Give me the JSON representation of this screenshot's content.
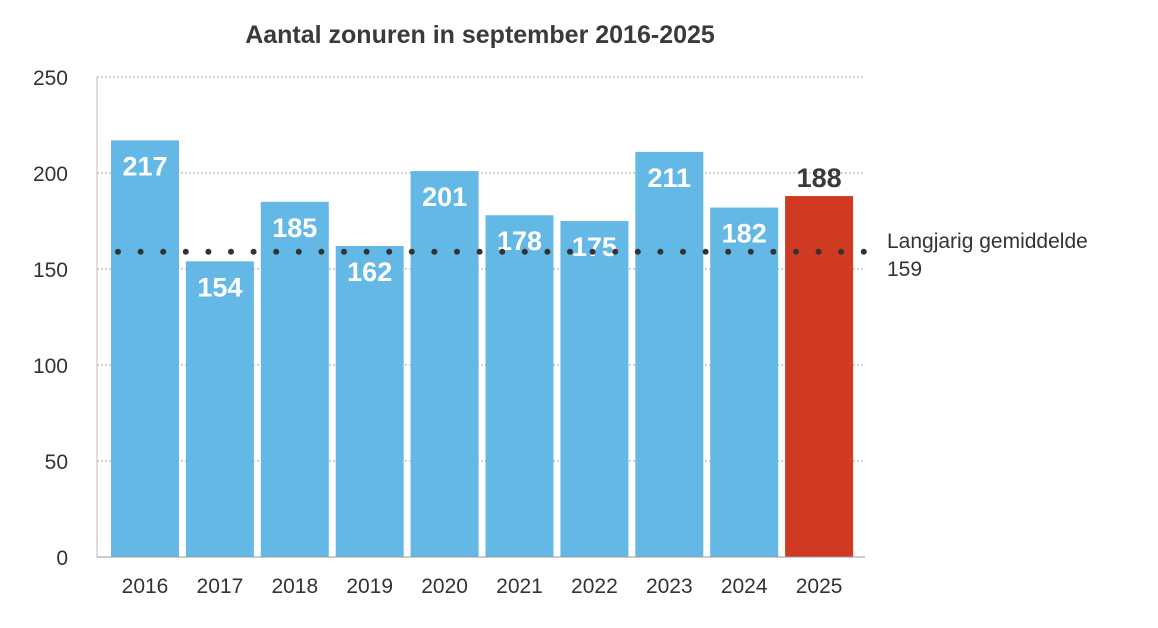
{
  "chart_data": {
    "type": "bar",
    "title": "Aantal zonuren in september 2016-2025",
    "xlabel": "",
    "ylabel": "",
    "categories": [
      "2016",
      "2017",
      "2018",
      "2019",
      "2020",
      "2021",
      "2022",
      "2023",
      "2024",
      "2025"
    ],
    "values": [
      217,
      154,
      185,
      162,
      201,
      178,
      175,
      211,
      182,
      188
    ],
    "ylim": [
      0,
      250
    ],
    "yticks": [
      0,
      50,
      100,
      150,
      200,
      250
    ],
    "grid": true,
    "colors": {
      "bar": "#63b8e6",
      "highlight": "#d13a22",
      "highlight_category": "2025"
    },
    "reference_line": {
      "label": "Langjarig gemiddelde",
      "value_label": "159",
      "value": 159,
      "style": "dotted",
      "color": "#333333"
    }
  }
}
